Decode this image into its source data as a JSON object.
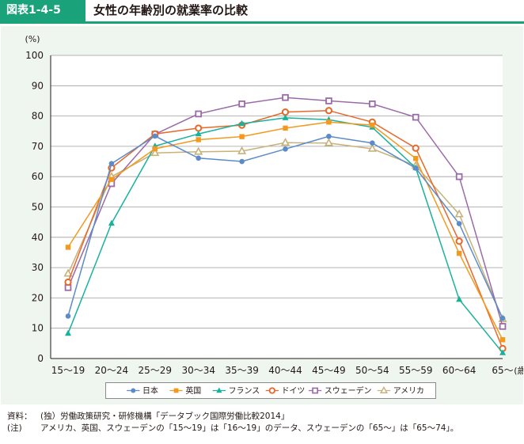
{
  "figure": {
    "label": "図表1-4-5",
    "title": "女性の年齢別の就業率の比較"
  },
  "chart_data": {
    "type": "line",
    "ylabel": "(%)",
    "xlabel_unit": "(歳)",
    "ylim": [
      0,
      100
    ],
    "yticks": [
      0,
      10,
      20,
      30,
      40,
      50,
      60,
      70,
      80,
      90,
      100
    ],
    "grid": "horizontal",
    "legend_placement": "bottom",
    "categories": [
      "15～19",
      "20～24",
      "25～29",
      "30～34",
      "35～39",
      "40～44",
      "45～49",
      "50～54",
      "55～59",
      "60～64",
      "65～"
    ],
    "series": [
      {
        "name": "日本",
        "color": "#5b8bc9",
        "marker": "circle-filled",
        "values": [
          14.0,
          64.3,
          73.4,
          66.1,
          65.0,
          69.1,
          73.3,
          71.1,
          62.8,
          44.5,
          13.3
        ]
      },
      {
        "name": "英国",
        "color": "#f39a1e",
        "marker": "square-filled",
        "values": [
          36.7,
          59.1,
          69.2,
          72.2,
          73.2,
          76.0,
          78.0,
          77.0,
          66.0,
          34.7,
          6.2
        ]
      },
      {
        "name": "フランス",
        "color": "#18b29c",
        "marker": "triangle-filled",
        "values": [
          8.3,
          44.6,
          70.1,
          74.1,
          77.5,
          79.4,
          78.8,
          76.3,
          62.9,
          19.5,
          1.9
        ]
      },
      {
        "name": "ドイツ",
        "color": "#e8682a",
        "marker": "circle-open",
        "values": [
          25.2,
          62.9,
          74.1,
          76.0,
          77.0,
          81.3,
          81.8,
          78.0,
          69.4,
          38.7,
          3.3
        ]
      },
      {
        "name": "スウェーデン",
        "color": "#9b6aa8",
        "marker": "square-open",
        "values": [
          23.4,
          57.7,
          74.0,
          80.7,
          84.0,
          86.1,
          85.0,
          84.0,
          79.6,
          60.0,
          10.6
        ]
      },
      {
        "name": "アメリカ",
        "color": "#c8b27a",
        "marker": "triangle-open",
        "values": [
          28.0,
          60.0,
          67.8,
          68.2,
          68.4,
          71.2,
          71.1,
          69.2,
          63.6,
          47.6,
          13.0
        ]
      }
    ]
  },
  "notes": {
    "source_label": "資料：",
    "source_text": "(独）労働政策研究・研修機構「データブック国際労働比較2014」",
    "remark_label": "(注)",
    "remark_text": "アメリカ、英国、スウェーデンの「15～19」は「16～19」のデータ、スウェーデンの「65～」は「65～74」。"
  }
}
